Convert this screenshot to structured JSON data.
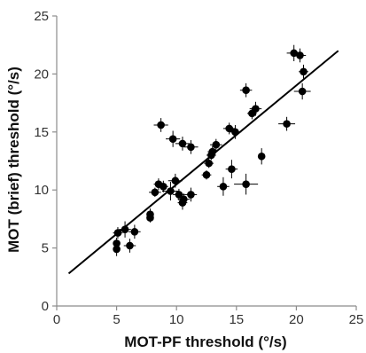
{
  "chart_data": {
    "type": "scatter",
    "title": "",
    "xlabel": "MOT-PF threshold (°/s)",
    "ylabel": "MOT (brief) threshold (°/s)",
    "xlim": [
      0,
      25
    ],
    "ylim": [
      0,
      25
    ],
    "xticks": [
      "0",
      "5",
      "10",
      "15",
      "20",
      "25"
    ],
    "yticks": [
      "0",
      "5",
      "10",
      "15",
      "20",
      "25"
    ],
    "grid": false,
    "legend": "none",
    "colors": {
      "points": "#000000",
      "error_bars": "#000000",
      "fit_line": "#000000",
      "axes": "#8c8c8c"
    },
    "points": [
      {
        "x": 19.8,
        "y": 21.8,
        "xerr": 0.6,
        "yerr": 0.7
      },
      {
        "x": 20.3,
        "y": 21.6,
        "xerr": 0.5,
        "yerr": 0.6
      },
      {
        "x": 20.6,
        "y": 20.2,
        "xerr": 0.4,
        "yerr": 0.6
      },
      {
        "x": 20.5,
        "y": 18.5,
        "xerr": 0.7,
        "yerr": 0.7
      },
      {
        "x": 19.2,
        "y": 15.7,
        "xerr": 0.7,
        "yerr": 0.6
      },
      {
        "x": 15.8,
        "y": 18.6,
        "xerr": 0.5,
        "yerr": 0.6
      },
      {
        "x": 16.6,
        "y": 17.0,
        "xerr": 0.5,
        "yerr": 0.6
      },
      {
        "x": 16.3,
        "y": 16.6,
        "xerr": 0.4,
        "yerr": 0.5
      },
      {
        "x": 14.9,
        "y": 15.0,
        "xerr": 0.5,
        "yerr": 0.6
      },
      {
        "x": 14.4,
        "y": 15.3,
        "xerr": 0.5,
        "yerr": 0.5
      },
      {
        "x": 17.1,
        "y": 12.9,
        "xerr": 0.2,
        "yerr": 0.7
      },
      {
        "x": 14.6,
        "y": 11.8,
        "xerr": 0.5,
        "yerr": 0.8
      },
      {
        "x": 15.8,
        "y": 10.5,
        "xerr": 1.0,
        "yerr": 0.9
      },
      {
        "x": 13.9,
        "y": 10.3,
        "xerr": 0.5,
        "yerr": 0.8
      },
      {
        "x": 13.3,
        "y": 13.9,
        "xerr": 0.5,
        "yerr": 0.5
      },
      {
        "x": 13.0,
        "y": 13.3,
        "xerr": 0.4,
        "yerr": 0.5
      },
      {
        "x": 12.9,
        "y": 13.0,
        "xerr": 0.4,
        "yerr": 0.4
      },
      {
        "x": 12.7,
        "y": 12.3,
        "xerr": 0.4,
        "yerr": 0.4
      },
      {
        "x": 12.5,
        "y": 11.3,
        "xerr": 0.4,
        "yerr": 0.4
      },
      {
        "x": 8.7,
        "y": 15.6,
        "xerr": 0.6,
        "yerr": 0.6
      },
      {
        "x": 9.7,
        "y": 14.4,
        "xerr": 0.6,
        "yerr": 0.7
      },
      {
        "x": 10.5,
        "y": 14.0,
        "xerr": 0.6,
        "yerr": 0.6
      },
      {
        "x": 11.2,
        "y": 13.7,
        "xerr": 0.6,
        "yerr": 0.6
      },
      {
        "x": 8.5,
        "y": 10.5,
        "xerr": 0.4,
        "yerr": 0.5
      },
      {
        "x": 8.2,
        "y": 9.8,
        "xerr": 0.5,
        "yerr": 0.4
      },
      {
        "x": 8.9,
        "y": 10.3,
        "xerr": 0.4,
        "yerr": 0.5
      },
      {
        "x": 9.5,
        "y": 9.9,
        "xerr": 0.7,
        "yerr": 0.8
      },
      {
        "x": 9.9,
        "y": 10.8,
        "xerr": 0.6,
        "yerr": 0.6
      },
      {
        "x": 10.2,
        "y": 9.6,
        "xerr": 0.5,
        "yerr": 0.5
      },
      {
        "x": 10.6,
        "y": 9.2,
        "xerr": 0.5,
        "yerr": 0.5
      },
      {
        "x": 10.5,
        "y": 8.9,
        "xerr": 0.4,
        "yerr": 0.6
      },
      {
        "x": 11.2,
        "y": 9.6,
        "xerr": 0.5,
        "yerr": 0.6
      },
      {
        "x": 7.8,
        "y": 7.9,
        "xerr": 0.2,
        "yerr": 0.5
      },
      {
        "x": 7.8,
        "y": 7.6,
        "xerr": 0.2,
        "yerr": 0.4
      },
      {
        "x": 6.5,
        "y": 6.4,
        "xerr": 0.5,
        "yerr": 0.6
      },
      {
        "x": 5.7,
        "y": 6.6,
        "xerr": 0.5,
        "yerr": 0.7
      },
      {
        "x": 5.1,
        "y": 6.3,
        "xerr": 0.4,
        "yerr": 0.5
      },
      {
        "x": 6.1,
        "y": 5.2,
        "xerr": 0.5,
        "yerr": 0.6
      },
      {
        "x": 5.0,
        "y": 5.4,
        "xerr": 0.2,
        "yerr": 0.5
      },
      {
        "x": 5.0,
        "y": 4.9,
        "xerr": 0.2,
        "yerr": 0.6
      }
    ],
    "fit_line": {
      "x": [
        1.0,
        23.5
      ],
      "y": [
        2.8,
        22.0
      ]
    }
  }
}
